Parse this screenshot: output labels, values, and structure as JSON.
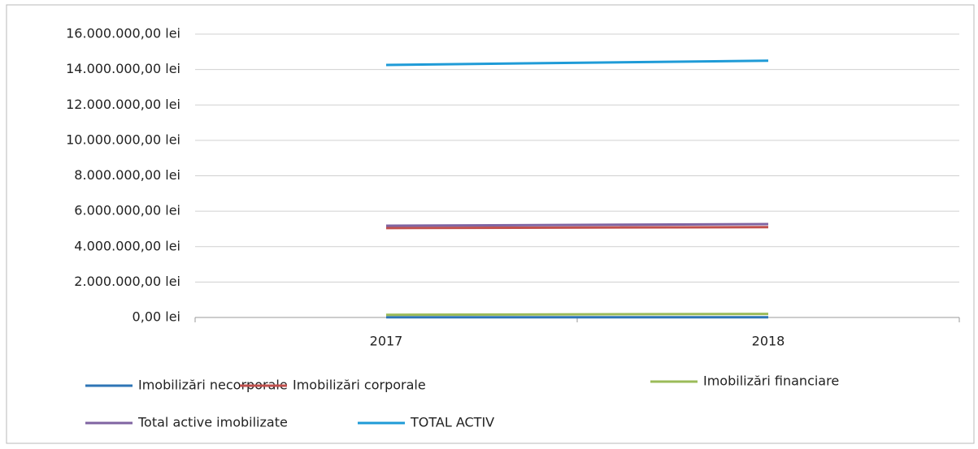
{
  "chart_data": {
    "type": "line",
    "categories": [
      "2017",
      "2018"
    ],
    "series": [
      {
        "name": "Imobilizări necorporale",
        "color": "#2e75b6",
        "values": [
          10000,
          10000
        ]
      },
      {
        "name": "Imobilizări corporale",
        "color": "#c0504d",
        "values": [
          5050000,
          5100000
        ]
      },
      {
        "name": "Imobilizări financiare",
        "color": "#9bbb59",
        "values": [
          150000,
          200000
        ]
      },
      {
        "name": "Total active imobilizate",
        "color": "#8064a2",
        "values": [
          5180000,
          5270000
        ]
      },
      {
        "name": "TOTAL ACTIV",
        "color": "#1f9bd7",
        "values": [
          14260000,
          14500000
        ]
      }
    ],
    "ylim": [
      0,
      16000000
    ],
    "yticks": [
      {
        "value": 0,
        "label": "0,00 lei"
      },
      {
        "value": 2000000,
        "label": "2.000.000,00 lei"
      },
      {
        "value": 4000000,
        "label": "4.000.000,00 lei"
      },
      {
        "value": 6000000,
        "label": "6.000.000,00 lei"
      },
      {
        "value": 8000000,
        "label": "8.000.000,00 lei"
      },
      {
        "value": 10000000,
        "label": "10.000.000,00 lei"
      },
      {
        "value": 12000000,
        "label": "12.000.000,00 lei"
      },
      {
        "value": 14000000,
        "label": "14.000.000,00 lei"
      },
      {
        "value": 16000000,
        "label": "16.000.000,00 lei"
      }
    ],
    "grid": true
  }
}
